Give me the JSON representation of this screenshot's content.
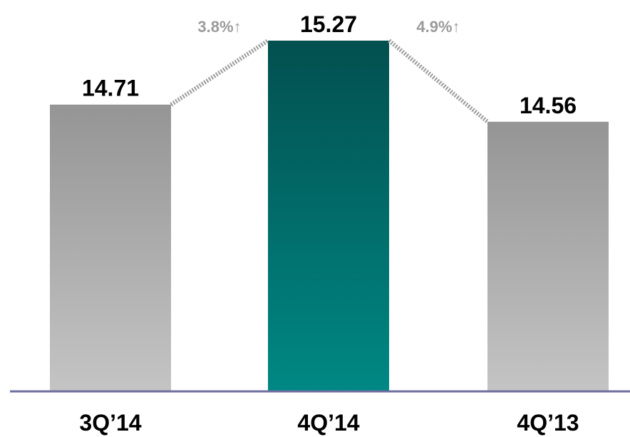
{
  "chart_data": {
    "type": "bar",
    "categories": [
      "3Q’14",
      "4Q’14",
      "4Q’13"
    ],
    "values": [
      14.71,
      15.27,
      14.56
    ],
    "value_labels": [
      "14.71",
      "15.27",
      "14.56"
    ],
    "annotations": [
      {
        "text": "3.8%↑",
        "between": [
          0,
          1
        ]
      },
      {
        "text": "4.9%↑",
        "between": [
          2,
          1
        ]
      }
    ],
    "title": "",
    "xlabel": "",
    "ylabel": "",
    "grid": false,
    "legend": "none",
    "ylim": [
      12.2,
      15.27
    ],
    "colors": {
      "default_bar_top": "#959595",
      "default_bar_bottom": "#c4c4c4",
      "highlight_bar_top": "#02504f",
      "highlight_bar_bottom": "#008884",
      "axis_line": "#6e6f9d",
      "connector": "#9a9a9a",
      "annotation_text": "#9a9a9a",
      "label_text": "#000000"
    },
    "highlight_index": 1
  }
}
